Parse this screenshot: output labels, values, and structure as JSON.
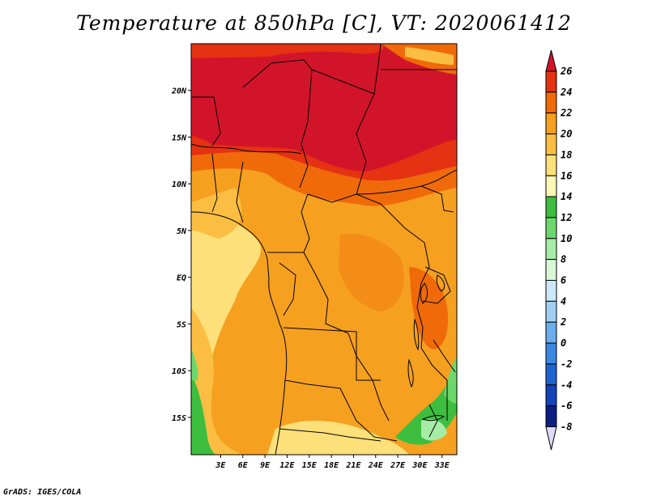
{
  "title": "Temperature at 850hPa [C], VT: 2020061412",
  "credit": "GrADS: IGES/COLA",
  "map": {
    "lon_range": [
      -1,
      35
    ],
    "lat_range": [
      -19,
      25
    ],
    "x_ticks": [
      "3E",
      "6E",
      "9E",
      "12E",
      "15E",
      "18E",
      "21E",
      "24E",
      "27E",
      "30E",
      "33E"
    ],
    "x_tick_values": [
      3,
      6,
      9,
      12,
      15,
      18,
      21,
      24,
      27,
      30,
      33
    ],
    "y_ticks": [
      "20N",
      "15N",
      "10N",
      "5N",
      "EQ",
      "5S",
      "10S",
      "15S"
    ],
    "y_tick_values": [
      20,
      15,
      10,
      5,
      0,
      -5,
      -10,
      -15
    ]
  },
  "colorbar": {
    "labels": [
      "26",
      "24",
      "22",
      "20",
      "18",
      "16",
      "14",
      "12",
      "10",
      "8",
      "6",
      "4",
      "2",
      "0",
      "-2",
      "-4",
      "-6",
      "-8"
    ],
    "colors": [
      "#d2142a",
      "#e43212",
      "#f06a0a",
      "#f6a020",
      "#fbbe42",
      "#fde07a",
      "#fef8b4",
      "#3ebe3e",
      "#6cd86c",
      "#a6eca6",
      "#d8f8d8",
      "#cde8fa",
      "#9fcff5",
      "#6aaeed",
      "#3b88e3",
      "#1f63d1",
      "#1444b8",
      "#0b1f82",
      "#dcdcf8"
    ]
  }
}
